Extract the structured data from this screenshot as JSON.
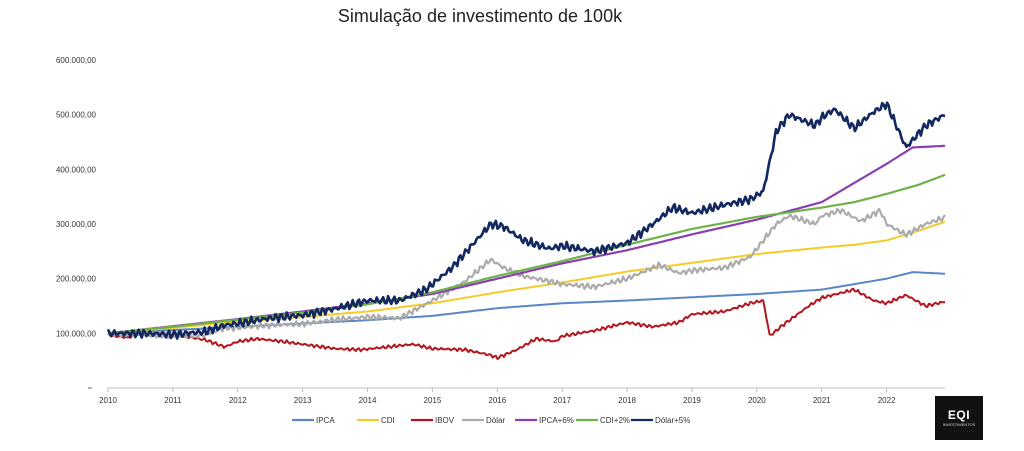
{
  "chart_data": {
    "type": "line",
    "title": "Simulação de investimento de 100k",
    "xlabel": "",
    "ylabel": "",
    "xlim": [
      2010,
      2022.9
    ],
    "ylim": [
      0,
      600000
    ],
    "x_ticks": [
      "2010",
      "2011",
      "2012",
      "2013",
      "2014",
      "2015",
      "2016",
      "2017",
      "2018",
      "2019",
      "2020",
      "2021",
      "2022"
    ],
    "y_ticks": [
      {
        "value": 100000,
        "label": "100.000,00"
      },
      {
        "value": 200000,
        "label": "200.000,00"
      },
      {
        "value": 300000,
        "label": "300.000,00"
      },
      {
        "value": 400000,
        "label": "400.000,00"
      },
      {
        "value": 500000,
        "label": "500.000,00"
      },
      {
        "value": 600000,
        "label": "600.000,00"
      }
    ],
    "series": [
      {
        "name": "IPCA",
        "color": "#5a86c6",
        "width": 2,
        "noise": 0,
        "points": [
          [
            2010,
            100000
          ],
          [
            2011,
            106000
          ],
          [
            2012,
            112000
          ],
          [
            2013,
            118000
          ],
          [
            2014,
            124000
          ],
          [
            2015,
            132000
          ],
          [
            2016,
            146000
          ],
          [
            2017,
            155000
          ],
          [
            2018,
            160000
          ],
          [
            2019,
            166000
          ],
          [
            2020,
            172000
          ],
          [
            2021,
            180000
          ],
          [
            2021.5,
            190000
          ],
          [
            2022,
            200000
          ],
          [
            2022.4,
            212000
          ],
          [
            2022.9,
            209000
          ]
        ]
      },
      {
        "name": "CDI",
        "color": "#f5cb2a",
        "width": 2,
        "noise": 0,
        "points": [
          [
            2010,
            100000
          ],
          [
            2011,
            110000
          ],
          [
            2012,
            121000
          ],
          [
            2013,
            130000
          ],
          [
            2014,
            140000
          ],
          [
            2015,
            155000
          ],
          [
            2016,
            175000
          ],
          [
            2017,
            193000
          ],
          [
            2018,
            213000
          ],
          [
            2019,
            229000
          ],
          [
            2020,
            245000
          ],
          [
            2021,
            257000
          ],
          [
            2021.5,
            262000
          ],
          [
            2022,
            270000
          ],
          [
            2022.5,
            288000
          ],
          [
            2022.9,
            304000
          ]
        ]
      },
      {
        "name": "IBOV",
        "color": "#b2161e",
        "width": 2,
        "noise": 3500,
        "points": [
          [
            2010,
            97000
          ],
          [
            2010.3,
            92000
          ],
          [
            2010.5,
            100000
          ],
          [
            2011,
            98000
          ],
          [
            2011.5,
            88000
          ],
          [
            2011.8,
            75000
          ],
          [
            2012,
            85000
          ],
          [
            2012.3,
            90000
          ],
          [
            2012.7,
            85000
          ],
          [
            2013,
            80000
          ],
          [
            2013.5,
            72000
          ],
          [
            2013.9,
            70000
          ],
          [
            2014.3,
            75000
          ],
          [
            2014.7,
            80000
          ],
          [
            2015,
            72000
          ],
          [
            2015.5,
            70000
          ],
          [
            2015.9,
            60000
          ],
          [
            2016,
            55000
          ],
          [
            2016.3,
            70000
          ],
          [
            2016.6,
            90000
          ],
          [
            2016.9,
            85000
          ],
          [
            2017,
            95000
          ],
          [
            2017.5,
            105000
          ],
          [
            2018,
            120000
          ],
          [
            2018.4,
            112000
          ],
          [
            2018.8,
            120000
          ],
          [
            2019,
            135000
          ],
          [
            2019.5,
            140000
          ],
          [
            2019.9,
            155000
          ],
          [
            2020.1,
            160000
          ],
          [
            2020.2,
            95000
          ],
          [
            2020.4,
            115000
          ],
          [
            2020.8,
            150000
          ],
          [
            2021,
            165000
          ],
          [
            2021.5,
            180000
          ],
          [
            2021.8,
            160000
          ],
          [
            2022,
            155000
          ],
          [
            2022.3,
            170000
          ],
          [
            2022.6,
            150000
          ],
          [
            2022.9,
            158000
          ]
        ]
      },
      {
        "name": "Dólar",
        "color": "#ababab",
        "width": 2.2,
        "noise": 6000,
        "points": [
          [
            2010,
            100000
          ],
          [
            2010.5,
            98000
          ],
          [
            2011,
            95000
          ],
          [
            2011.5,
            97000
          ],
          [
            2011.8,
            110000
          ],
          [
            2012,
            110000
          ],
          [
            2012.5,
            115000
          ],
          [
            2013,
            117000
          ],
          [
            2013.5,
            125000
          ],
          [
            2014,
            130000
          ],
          [
            2014.5,
            128000
          ],
          [
            2015,
            160000
          ],
          [
            2015.5,
            195000
          ],
          [
            2015.9,
            235000
          ],
          [
            2016.1,
            220000
          ],
          [
            2016.4,
            205000
          ],
          [
            2016.8,
            195000
          ],
          [
            2017,
            190000
          ],
          [
            2017.5,
            185000
          ],
          [
            2018,
            200000
          ],
          [
            2018.5,
            225000
          ],
          [
            2018.8,
            210000
          ],
          [
            2019,
            215000
          ],
          [
            2019.5,
            220000
          ],
          [
            2019.9,
            240000
          ],
          [
            2020.3,
            300000
          ],
          [
            2020.5,
            315000
          ],
          [
            2020.9,
            300000
          ],
          [
            2021,
            315000
          ],
          [
            2021.3,
            325000
          ],
          [
            2021.6,
            305000
          ],
          [
            2021.9,
            325000
          ],
          [
            2022,
            300000
          ],
          [
            2022.3,
            280000
          ],
          [
            2022.6,
            300000
          ],
          [
            2022.9,
            312000
          ]
        ]
      },
      {
        "name": "IPCA+6%",
        "color": "#8a3fb0",
        "width": 2.2,
        "noise": 0,
        "points": [
          [
            2010,
            100000
          ],
          [
            2011,
            113000
          ],
          [
            2012,
            126000
          ],
          [
            2013,
            140000
          ],
          [
            2014,
            155000
          ],
          [
            2015,
            172000
          ],
          [
            2016,
            200000
          ],
          [
            2017,
            228000
          ],
          [
            2018,
            252000
          ],
          [
            2019,
            281000
          ],
          [
            2020,
            308000
          ],
          [
            2021,
            340000
          ],
          [
            2021.5,
            375000
          ],
          [
            2022,
            410000
          ],
          [
            2022.4,
            440000
          ],
          [
            2022.9,
            443000
          ]
        ]
      },
      {
        "name": "CDI+2%",
        "color": "#6fb247",
        "width": 2.2,
        "noise": 0,
        "points": [
          [
            2010,
            100000
          ],
          [
            2011,
            112000
          ],
          [
            2012,
            125000
          ],
          [
            2013,
            138000
          ],
          [
            2014,
            153000
          ],
          [
            2015,
            175000
          ],
          [
            2016,
            205000
          ],
          [
            2017,
            232000
          ],
          [
            2018,
            262000
          ],
          [
            2019,
            291000
          ],
          [
            2020,
            313000
          ],
          [
            2021,
            330000
          ],
          [
            2021.5,
            340000
          ],
          [
            2022,
            355000
          ],
          [
            2022.5,
            372000
          ],
          [
            2022.9,
            390000
          ]
        ]
      },
      {
        "name": "Dólar+5%",
        "color": "#13285e",
        "width": 2.6,
        "noise": 9000,
        "points": [
          [
            2010,
            100000
          ],
          [
            2010.5,
            100000
          ],
          [
            2011,
            98000
          ],
          [
            2011.5,
            103000
          ],
          [
            2011.8,
            115000
          ],
          [
            2012,
            118000
          ],
          [
            2012.5,
            128000
          ],
          [
            2013,
            133000
          ],
          [
            2013.5,
            145000
          ],
          [
            2014,
            160000
          ],
          [
            2014.5,
            160000
          ],
          [
            2014.9,
            180000
          ],
          [
            2015.3,
            220000
          ],
          [
            2015.6,
            260000
          ],
          [
            2015.9,
            300000
          ],
          [
            2016.1,
            295000
          ],
          [
            2016.4,
            270000
          ],
          [
            2016.8,
            255000
          ],
          [
            2017,
            260000
          ],
          [
            2017.5,
            250000
          ],
          [
            2018,
            265000
          ],
          [
            2018.4,
            300000
          ],
          [
            2018.7,
            330000
          ],
          [
            2019,
            320000
          ],
          [
            2019.5,
            335000
          ],
          [
            2019.9,
            345000
          ],
          [
            2020.1,
            360000
          ],
          [
            2020.3,
            470000
          ],
          [
            2020.5,
            500000
          ],
          [
            2020.9,
            480000
          ],
          [
            2021,
            495000
          ],
          [
            2021.2,
            510000
          ],
          [
            2021.5,
            475000
          ],
          [
            2021.8,
            505000
          ],
          [
            2022,
            520000
          ],
          [
            2022.3,
            440000
          ],
          [
            2022.6,
            480000
          ],
          [
            2022.9,
            500000
          ]
        ]
      }
    ]
  },
  "logo": {
    "main": "EQI",
    "sub": "INVESTIMENTOS"
  }
}
